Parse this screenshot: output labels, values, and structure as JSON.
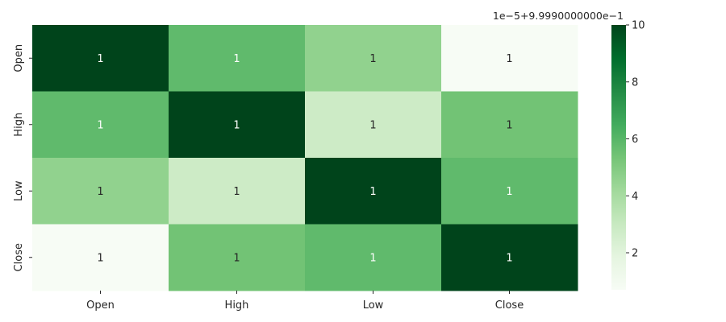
{
  "chart_data": {
    "type": "heatmap",
    "title": "",
    "xlabel": "",
    "ylabel": "",
    "x_categories": [
      "Open",
      "High",
      "Low",
      "Close"
    ],
    "y_categories": [
      "Open",
      "High",
      "Low",
      "Close"
    ],
    "values": [
      [
        10.0,
        5.8,
        4.6,
        0.7
      ],
      [
        5.8,
        10.0,
        2.8,
        5.4
      ],
      [
        4.6,
        2.8,
        10.0,
        5.8
      ],
      [
        0.7,
        5.4,
        5.8,
        10.0
      ]
    ],
    "annotations": [
      [
        "1",
        "1",
        "1",
        "1"
      ],
      [
        "1",
        "1",
        "1",
        "1"
      ],
      [
        "1",
        "1",
        "1",
        "1"
      ],
      [
        "1",
        "1",
        "1",
        "1"
      ]
    ],
    "colormap": "Greens",
    "colormap_stops": [
      "#f7fcf5",
      "#e5f5e0",
      "#c7e9c0",
      "#a1d99b",
      "#74c476",
      "#41ab5d",
      "#238b45",
      "#006d2c",
      "#00441b"
    ],
    "colorbar": {
      "range": [
        0.7,
        10.0
      ],
      "ticks": [
        2,
        4,
        6,
        8,
        10
      ],
      "tick_labels": [
        "2",
        "4",
        "6",
        "8",
        "10"
      ],
      "offset_label": "1e−5+9.9990000000e−1"
    },
    "grid": false
  }
}
